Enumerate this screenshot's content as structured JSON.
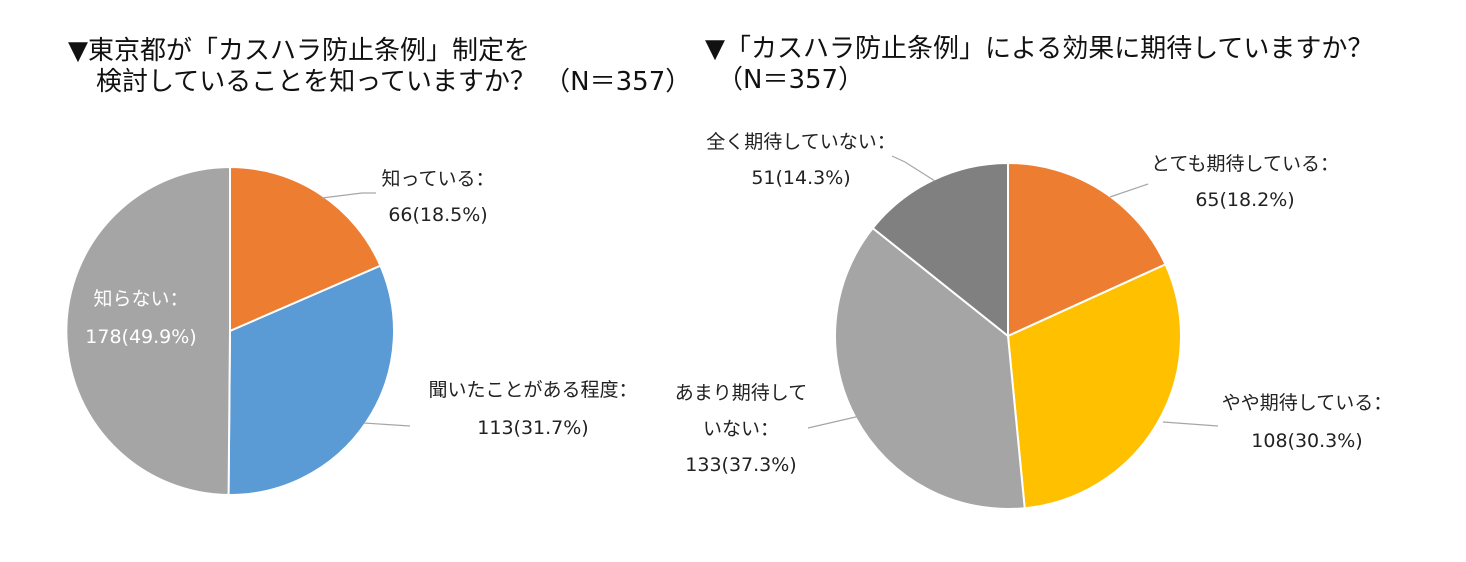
{
  "chart_data": [
    {
      "type": "pie",
      "title_lines": [
        "▼東京都が「カスハラ防止条例」制定を",
        "検討していることを知っていますか？ （N＝357）"
      ],
      "slices": [
        {
          "label": "知っている：",
          "value_text": "66(18.5%)",
          "count": 66,
          "percent": 18.5,
          "color": "#ED7D31"
        },
        {
          "label": "聞いたことがある程度：",
          "value_text": "113(31.7%)",
          "count": 113,
          "percent": 31.7,
          "color": "#5B9BD5"
        },
        {
          "label": "知らない：",
          "value_text": "178(49.9%)",
          "count": 178,
          "percent": 49.9,
          "color": "#A5A5A5"
        }
      ]
    },
    {
      "type": "pie",
      "title_lines": [
        "▼「カスハラ防止条例」による効果に期待していますか？",
        "（N＝357）"
      ],
      "slices": [
        {
          "label": "とても期待している：",
          "value_text": "65(18.2%)",
          "count": 65,
          "percent": 18.2,
          "color": "#ED7D31"
        },
        {
          "label": "やや期待している：",
          "value_text": "108(30.3%)",
          "count": 108,
          "percent": 30.3,
          "color": "#FFC000"
        },
        {
          "label": "あまり期待して\nいない：",
          "value_text": "133(37.3%)",
          "count": 133,
          "percent": 37.3,
          "color": "#A5A5A5"
        },
        {
          "label": "全く期待していない：",
          "value_text": "51(14.3%)",
          "count": 51,
          "percent": 14.3,
          "color": "#808080"
        }
      ]
    }
  ]
}
